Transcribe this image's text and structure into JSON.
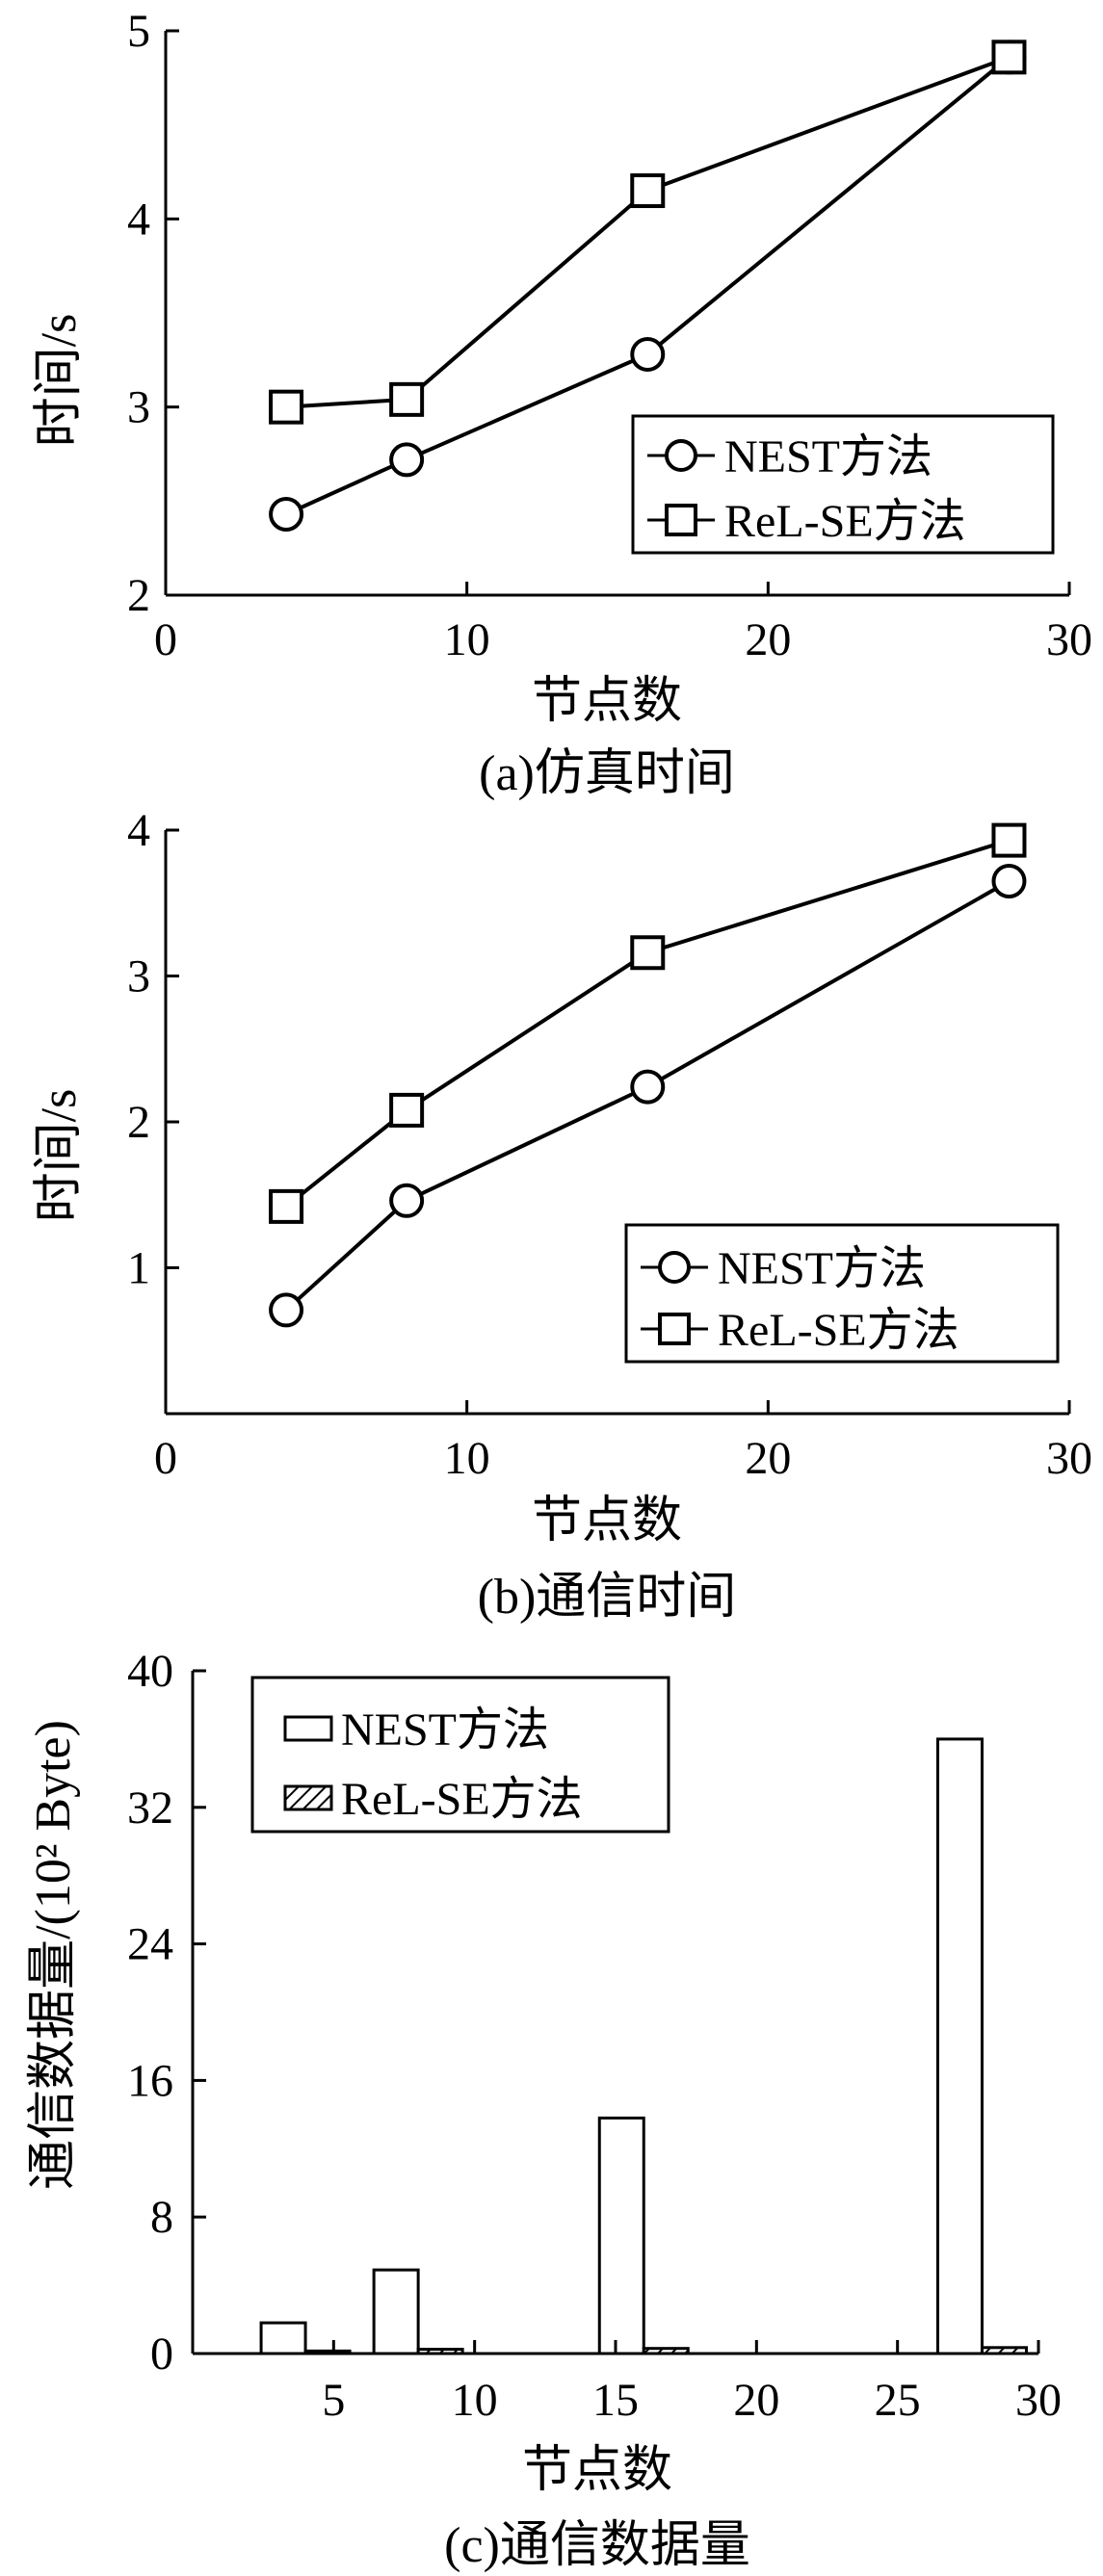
{
  "colors": {
    "ink": "#000000",
    "fill": "#ffffff"
  },
  "chart_data": [
    {
      "type": "line",
      "caption": "(a)仿真时间",
      "xlabel": "节点数",
      "ylabel": "时间/s",
      "xlim": [
        0,
        30
      ],
      "ylim": [
        2,
        5
      ],
      "xticks": [
        "0",
        "10",
        "20",
        "30"
      ],
      "yticks": [
        "2",
        "3",
        "4",
        "5"
      ],
      "grid": false,
      "legend_position": "lower-right",
      "series": [
        {
          "name": "NEST方法",
          "marker": "circle",
          "x": [
            4,
            8,
            16,
            28
          ],
          "y": [
            2.43,
            2.72,
            3.28,
            4.86
          ]
        },
        {
          "name": "ReL-SE方法",
          "marker": "square",
          "x": [
            4,
            8,
            16,
            28
          ],
          "y": [
            3.0,
            3.04,
            4.15,
            4.86
          ]
        }
      ]
    },
    {
      "type": "line",
      "caption": "(b)通信时间",
      "xlabel": "节点数",
      "ylabel": "时间/s",
      "xlim": [
        0,
        30
      ],
      "ylim": [
        0,
        4
      ],
      "xticks": [
        "0",
        "10",
        "20",
        "30"
      ],
      "yticks": [
        "1",
        "2",
        "3",
        "4"
      ],
      "grid": false,
      "legend_position": "lower-right",
      "series": [
        {
          "name": "NEST方法",
          "marker": "circle",
          "x": [
            4,
            8,
            16,
            28
          ],
          "y": [
            0.71,
            1.46,
            2.24,
            3.65
          ]
        },
        {
          "name": "ReL-SE方法",
          "marker": "square",
          "x": [
            4,
            8,
            16,
            28
          ],
          "y": [
            1.42,
            2.08,
            3.16,
            3.93
          ]
        }
      ]
    },
    {
      "type": "bar",
      "caption": "(c)通信数据量",
      "xlabel": "节点数",
      "ylabel": "通信数据量/(10² Byte)",
      "xlim": [
        0,
        30
      ],
      "ylim": [
        0,
        40
      ],
      "xticks": [
        "5",
        "10",
        "15",
        "20",
        "25",
        "30"
      ],
      "yticks": [
        "0",
        "8",
        "16",
        "24",
        "32",
        "40"
      ],
      "grid": false,
      "legend_position": "top-left",
      "x": [
        4,
        8,
        16,
        28
      ],
      "series": [
        {
          "name": "NEST方法",
          "pattern": "empty",
          "values": [
            1.8,
            4.9,
            13.8,
            36.0
          ]
        },
        {
          "name": "ReL-SE方法",
          "pattern": "hatched",
          "values": [
            0.15,
            0.25,
            0.3,
            0.35
          ]
        }
      ]
    }
  ]
}
